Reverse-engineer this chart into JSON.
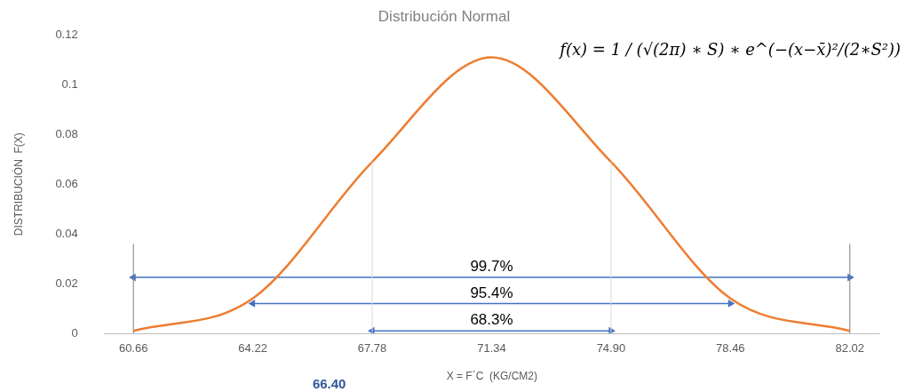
{
  "chart_data": {
    "type": "line",
    "title": "Distribución Normal",
    "xlabel": "X = F´C  (KG/CM2)",
    "ylabel": "DISTRIBUCIÓN  F(X)",
    "x": [
      60.66,
      64.22,
      67.78,
      71.34,
      74.9,
      78.46,
      82.02
    ],
    "series": [
      {
        "color": "#ed7d31",
        "values": [
          0.001,
          0.014,
          0.069,
          0.111,
          0.069,
          0.014,
          0.001
        ]
      },
      {
        "color": "#4472c4",
        "x": [
          60.66,
          82.02
        ],
        "values": [
          0.0225,
          0.0225
        ],
        "marker": "triangle"
      },
      {
        "color": "#4472c4",
        "x": [
          64.22,
          78.46
        ],
        "values": [
          0.012,
          0.012
        ],
        "marker": "triangle"
      },
      {
        "color": "#4472c4",
        "x": [
          67.78,
          74.9
        ],
        "values": [
          0.001,
          0.001
        ],
        "marker": "triangle"
      }
    ],
    "xlim": [
      59.8,
      82.9
    ],
    "xticks": [
      60.66,
      64.22,
      67.78,
      71.34,
      {
        "value": 74.9,
        "label": "74.90"
      },
      78.46,
      82.02
    ],
    "ylim": [
      0,
      0.12
    ],
    "yticks": [
      0,
      0.02,
      0.04,
      0.06,
      0.08,
      0.1,
      0.12
    ],
    "grid": false,
    "legend": false,
    "marker": "none",
    "line_style": "solid",
    "ref_lines": [
      {
        "axis": "x",
        "value": 60.66,
        "color": "#7f7f7f"
      },
      {
        "axis": "x",
        "value": 67.78,
        "color": "#d9d9d9"
      },
      {
        "axis": "x",
        "value": 74.9,
        "color": "#d9d9d9"
      },
      {
        "axis": "x",
        "value": 82.02,
        "color": "#7f7f7f"
      }
    ],
    "annotations": [
      "f(x) = 1 / (√(2π) ∗ S) ∗ e^(−(x−x̄)²/(2∗S²))",
      "66.40",
      "99.7%",
      "95.4%",
      "68.3%"
    ]
  }
}
